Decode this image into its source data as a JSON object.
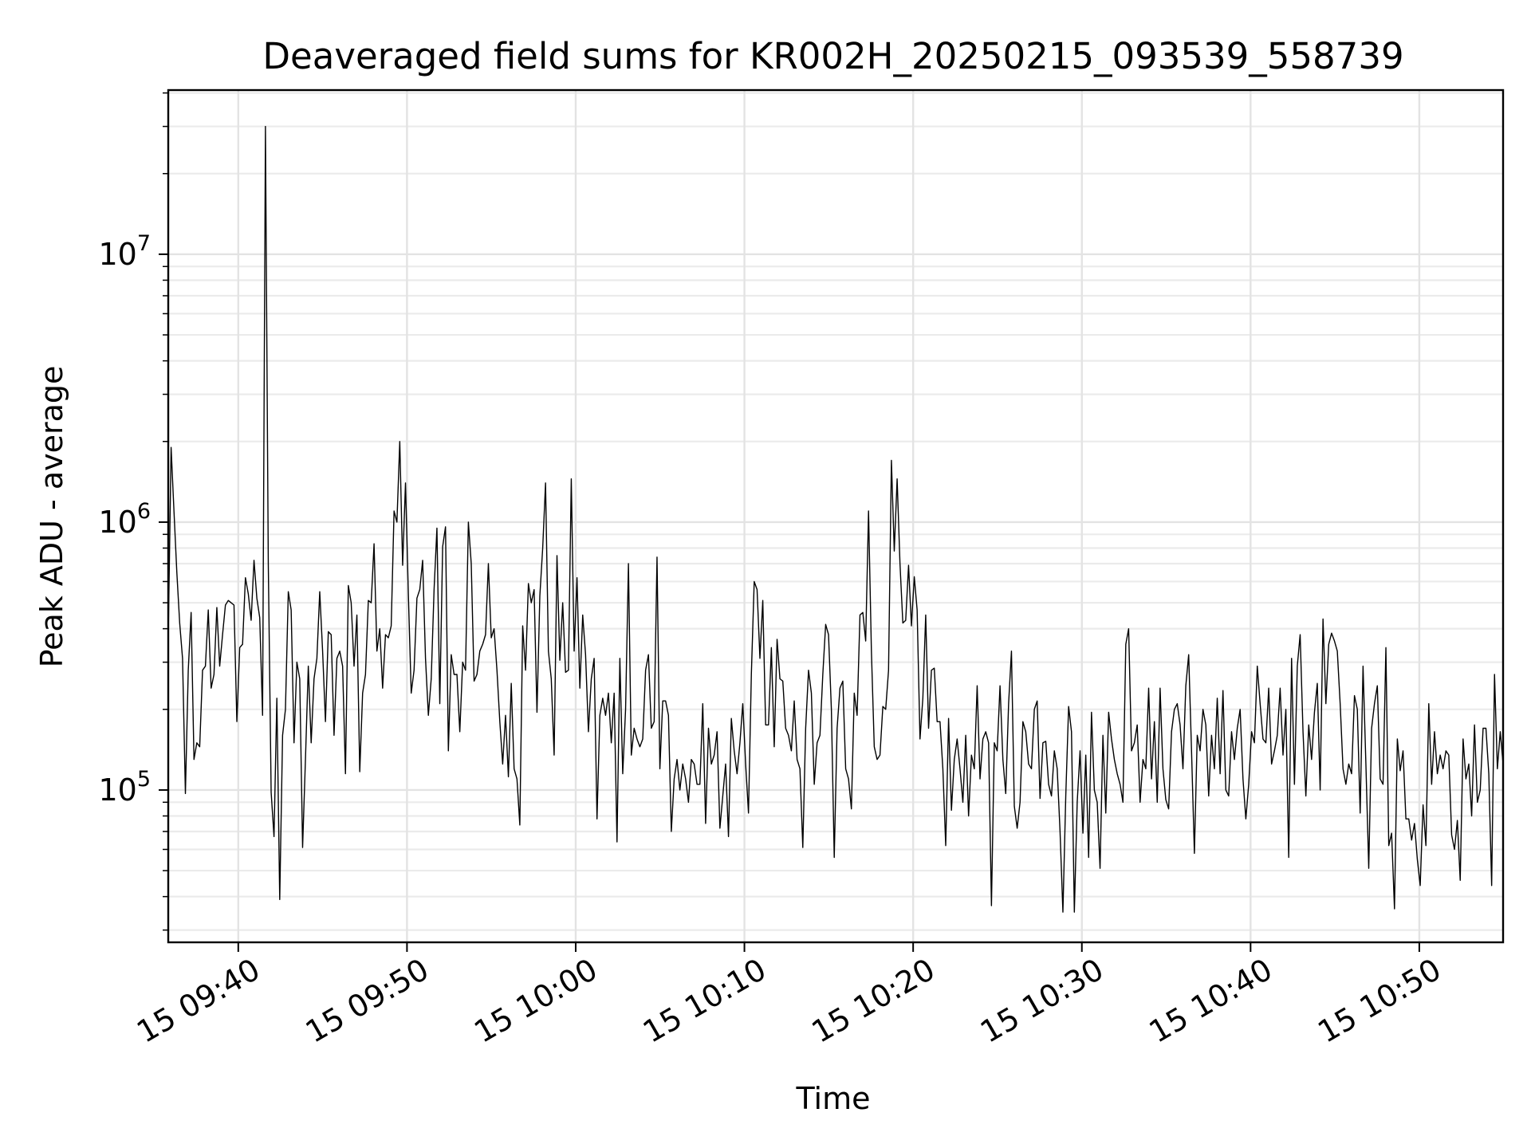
{
  "chart_data": {
    "type": "line",
    "title": "Deaveraged field sums for KR002H_20250215_093539_558739",
    "xlabel": "Time",
    "ylabel": "Peak ADU - average",
    "y_scale": "log",
    "grid": true,
    "x_range": [
      "2025-02-15 09:35:51",
      "2025-02-15 10:54:58"
    ],
    "ylim": [
      27000,
      41000000
    ],
    "x_ticks": [
      "15 09:40",
      "15 09:50",
      "15 10:00",
      "15 10:10",
      "15 10:20",
      "15 10:30",
      "15 10:40",
      "15 10:50"
    ],
    "y_ticks": [
      {
        "value": 100000,
        "base": "10",
        "exp": "5"
      },
      {
        "value": 1000000,
        "base": "10",
        "exp": "6"
      },
      {
        "value": 10000000,
        "base": "10",
        "exp": "7"
      }
    ],
    "series_color": "#000000",
    "x_start": "2025-02-15 09:35:51",
    "x_end": "2025-02-15 10:54:58",
    "values": [
      370000,
      1900000,
      1100000,
      650000,
      420000,
      310000,
      97000,
      280000,
      460000,
      130000,
      150000,
      145000,
      280000,
      290000,
      470000,
      240000,
      270000,
      480000,
      290000,
      380000,
      490000,
      510000,
      500000,
      490000,
      180000,
      340000,
      350000,
      620000,
      540000,
      430000,
      720000,
      520000,
      440000,
      190000,
      30000000,
      700000,
      98000,
      67000,
      220000,
      39000,
      160000,
      200000,
      550000,
      470000,
      150000,
      300000,
      260000,
      61000,
      130000,
      290000,
      150000,
      260000,
      310000,
      550000,
      330000,
      180000,
      390000,
      380000,
      160000,
      310000,
      330000,
      290000,
      115000,
      580000,
      500000,
      290000,
      450000,
      117000,
      230000,
      270000,
      510000,
      500000,
      830000,
      330000,
      400000,
      240000,
      380000,
      370000,
      410000,
      1100000,
      1000000,
      2000000,
      690000,
      1400000,
      540000,
      230000,
      280000,
      520000,
      560000,
      720000,
      310000,
      190000,
      260000,
      560000,
      950000,
      210000,
      810000,
      960000,
      140000,
      320000,
      270000,
      270000,
      165000,
      300000,
      280000,
      1000000,
      700000,
      255000,
      270000,
      330000,
      350000,
      380000,
      700000,
      370000,
      400000,
      280000,
      180000,
      125000,
      190000,
      112000,
      250000,
      120000,
      110000,
      74000,
      410000,
      280000,
      590000,
      500000,
      560000,
      195000,
      530000,
      800000,
      1400000,
      330000,
      260000,
      135000,
      750000,
      305000,
      500000,
      275000,
      280000,
      1450000,
      330000,
      620000,
      240000,
      450000,
      320000,
      165000,
      260000,
      310000,
      78000,
      190000,
      220000,
      190000,
      230000,
      150000,
      230000,
      64000,
      310000,
      115000,
      200000,
      700000,
      135000,
      170000,
      155000,
      145000,
      155000,
      280000,
      320000,
      170000,
      180000,
      740000,
      120000,
      215000,
      215000,
      190000,
      70000,
      110000,
      130000,
      100000,
      125000,
      110000,
      90000,
      130000,
      125000,
      105000,
      105000,
      210000,
      75000,
      170000,
      125000,
      135000,
      165000,
      72000,
      95000,
      125000,
      67000,
      185000,
      140000,
      115000,
      150000,
      210000,
      125000,
      82000,
      270000,
      600000,
      560000,
      310000,
      510000,
      175000,
      175000,
      340000,
      145000,
      365000,
      260000,
      255000,
      170000,
      160000,
      140000,
      215000,
      130000,
      120000,
      61000,
      170000,
      280000,
      230000,
      105000,
      150000,
      160000,
      270000,
      415000,
      380000,
      200000,
      56000,
      170000,
      240000,
      255000,
      120000,
      110000,
      85000,
      230000,
      190000,
      450000,
      460000,
      360000,
      1100000,
      330000,
      145000,
      130000,
      135000,
      205000,
      200000,
      280000,
      1700000,
      780000,
      1450000,
      700000,
      420000,
      430000,
      690000,
      410000,
      625000,
      470000,
      155000,
      220000,
      450000,
      170000,
      280000,
      285000,
      180000,
      180000,
      120000,
      62000,
      185000,
      84000,
      130000,
      155000,
      120000,
      90000,
      160000,
      80000,
      135000,
      120000,
      245000,
      110000,
      155000,
      165000,
      150000,
      37000,
      150000,
      140000,
      245000,
      130000,
      97000,
      210000,
      330000,
      87000,
      72000,
      90000,
      180000,
      165000,
      125000,
      120000,
      200000,
      215000,
      93000,
      150000,
      152000,
      105000,
      95000,
      140000,
      120000,
      70000,
      35000,
      95000,
      205000,
      165000,
      35000,
      90000,
      140000,
      69000,
      135000,
      56000,
      195000,
      100000,
      90000,
      51000,
      160000,
      82000,
      195000,
      155000,
      130000,
      115000,
      105000,
      90000,
      350000,
      400000,
      140000,
      150000,
      175000,
      90000,
      130000,
      120000,
      240000,
      110000,
      180000,
      90000,
      240000,
      120000,
      92000,
      85000,
      165000,
      200000,
      210000,
      175000,
      120000,
      245000,
      320000,
      140000,
      58000,
      160000,
      140000,
      200000,
      175000,
      95000,
      160000,
      120000,
      220000,
      115000,
      235000,
      100000,
      95000,
      165000,
      130000,
      170000,
      200000,
      110000,
      78000,
      105000,
      165000,
      150000,
      290000,
      210000,
      155000,
      150000,
      240000,
      125000,
      140000,
      160000,
      240000,
      135000,
      200000,
      56000,
      310000,
      105000,
      290000,
      380000,
      165000,
      95000,
      175000,
      130000,
      195000,
      250000,
      100000,
      435000,
      210000,
      350000,
      385000,
      360000,
      330000,
      210000,
      120000,
      105000,
      125000,
      115000,
      225000,
      200000,
      82000,
      290000,
      125000,
      51000,
      170000,
      210000,
      245000,
      110000,
      105000,
      340000,
      62000,
      69000,
      36000,
      155000,
      118000,
      140000,
      78000,
      78000,
      65000,
      75000,
      55000,
      44000,
      88000,
      62000,
      210000,
      105000,
      165000,
      115000,
      135000,
      120000,
      140000,
      135000,
      68000,
      60000,
      77000,
      46000,
      155000,
      110000,
      125000,
      80000,
      175000,
      90000,
      100000,
      170000,
      170000,
      115000,
      44000,
      270000,
      120000,
      165000,
      125000
    ]
  }
}
